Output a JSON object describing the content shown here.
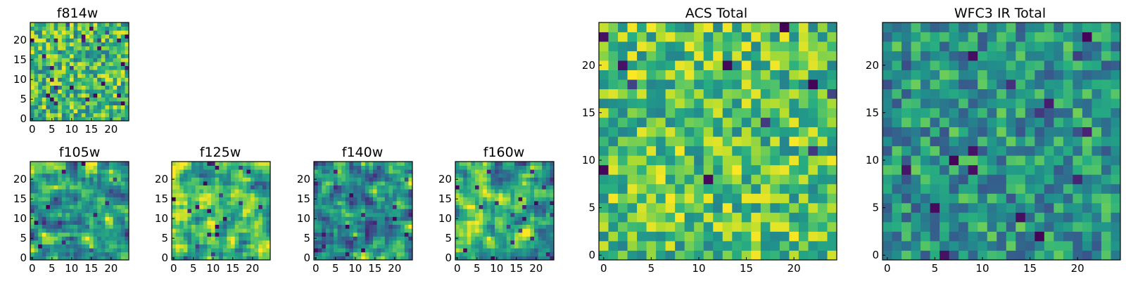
{
  "chart_data": [
    {
      "type": "heatmap",
      "title": "f814w",
      "grid": [
        25,
        25
      ],
      "colormap": "viridis",
      "xlim": [
        -0.5,
        24.5
      ],
      "ylim": [
        -0.5,
        24.5
      ],
      "xticks": [
        0,
        5,
        10,
        15,
        20
      ],
      "yticks": [
        0,
        5,
        10,
        15,
        20
      ],
      "xtick_labels": [
        "0",
        "5",
        "10",
        "15",
        "20"
      ],
      "ytick_labels": [
        "0",
        "5",
        "10",
        "15",
        "20"
      ],
      "seed": 11,
      "mean": 0.68,
      "spread": 0.3,
      "smooth": 0
    },
    {
      "type": "heatmap",
      "title": "f105w",
      "grid": [
        25,
        25
      ],
      "colormap": "viridis",
      "xlim": [
        -0.5,
        24.5
      ],
      "ylim": [
        -0.5,
        24.5
      ],
      "xticks": [
        0,
        5,
        10,
        15,
        20
      ],
      "yticks": [
        0,
        5,
        10,
        15,
        20
      ],
      "xtick_labels": [
        "0",
        "5",
        "10",
        "15",
        "20"
      ],
      "ytick_labels": [
        "0",
        "5",
        "10",
        "15",
        "20"
      ],
      "seed": 23,
      "mean": 0.6,
      "spread": 0.45,
      "smooth": 1
    },
    {
      "type": "heatmap",
      "title": "f125w",
      "grid": [
        25,
        25
      ],
      "colormap": "viridis",
      "xlim": [
        -0.5,
        24.5
      ],
      "ylim": [
        -0.5,
        24.5
      ],
      "xticks": [
        0,
        5,
        10,
        15,
        20
      ],
      "yticks": [
        0,
        5,
        10,
        15,
        20
      ],
      "xtick_labels": [
        "0",
        "5",
        "10",
        "15",
        "20"
      ],
      "ytick_labels": [
        "0",
        "5",
        "10",
        "15",
        "20"
      ],
      "seed": 37,
      "mean": 0.7,
      "spread": 0.45,
      "smooth": 1
    },
    {
      "type": "heatmap",
      "title": "f140w",
      "grid": [
        25,
        25
      ],
      "colormap": "viridis",
      "xlim": [
        -0.5,
        24.5
      ],
      "ylim": [
        -0.5,
        24.5
      ],
      "xticks": [
        0,
        5,
        10,
        15,
        20
      ],
      "yticks": [
        0,
        5,
        10,
        15,
        20
      ],
      "xtick_labels": [
        "0",
        "5",
        "10",
        "15",
        "20"
      ],
      "ytick_labels": [
        "0",
        "5",
        "10",
        "15",
        "20"
      ],
      "seed": 41,
      "mean": 0.55,
      "spread": 0.5,
      "smooth": 1
    },
    {
      "type": "heatmap",
      "title": "f160w",
      "grid": [
        25,
        25
      ],
      "colormap": "viridis",
      "xlim": [
        -0.5,
        24.5
      ],
      "ylim": [
        -0.5,
        24.5
      ],
      "xticks": [
        0,
        5,
        10,
        15,
        20
      ],
      "yticks": [
        0,
        5,
        10,
        15,
        20
      ],
      "xtick_labels": [
        "0",
        "5",
        "10",
        "15",
        "20"
      ],
      "ytick_labels": [
        "0",
        "5",
        "10",
        "15",
        "20"
      ],
      "seed": 53,
      "mean": 0.6,
      "spread": 0.5,
      "smooth": 1
    },
    {
      "type": "heatmap",
      "title": "ACS Total",
      "grid": [
        25,
        25
      ],
      "colormap": "viridis",
      "xlim": [
        -0.5,
        24.5
      ],
      "ylim": [
        -0.5,
        24.5
      ],
      "xticks": [
        0,
        5,
        10,
        15,
        20
      ],
      "yticks": [
        0,
        5,
        10,
        15,
        20
      ],
      "xtick_labels": [
        "0",
        "5",
        "10",
        "15",
        "20"
      ],
      "ytick_labels": [
        "0",
        "5",
        "10",
        "15",
        "20"
      ],
      "seed": 67,
      "mean": 0.72,
      "spread": 0.28,
      "smooth": 0
    },
    {
      "type": "heatmap",
      "title": "WFC3 IR Total",
      "grid": [
        25,
        25
      ],
      "colormap": "viridis",
      "xlim": [
        -0.5,
        24.5
      ],
      "ylim": [
        -0.5,
        24.5
      ],
      "xticks": [
        0,
        5,
        10,
        15,
        20
      ],
      "yticks": [
        0,
        5,
        10,
        15,
        20
      ],
      "xtick_labels": [
        "0",
        "5",
        "10",
        "15",
        "20"
      ],
      "ytick_labels": [
        "0",
        "5",
        "10",
        "15",
        "20"
      ],
      "seed": 79,
      "mean": 0.52,
      "spread": 0.26,
      "smooth": 0
    }
  ]
}
